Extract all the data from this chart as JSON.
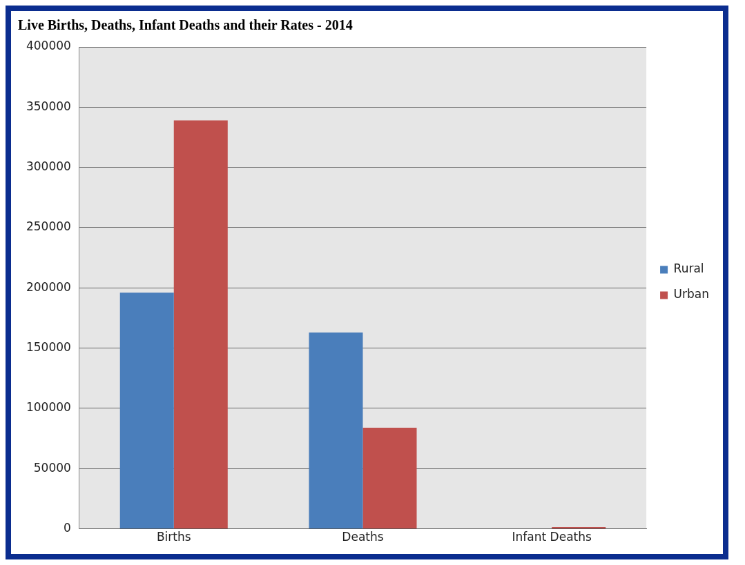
{
  "chart_data": {
    "type": "bar",
    "title": "Live Births, Deaths, Infant Deaths and their Rates - 2014",
    "categories": [
      "Births",
      "Deaths",
      "Infant Deaths"
    ],
    "series": [
      {
        "name": "Rural",
        "color": "#4a7ebb",
        "values": [
          196000,
          163000,
          null
        ]
      },
      {
        "name": "Urban",
        "color": "#c0504d",
        "values": [
          339000,
          84000,
          1500
        ]
      }
    ],
    "ylim": [
      0,
      400000
    ],
    "yticks": [
      0,
      50000,
      100000,
      150000,
      200000,
      250000,
      300000,
      350000,
      400000
    ],
    "grid": "y",
    "legend": "right"
  }
}
